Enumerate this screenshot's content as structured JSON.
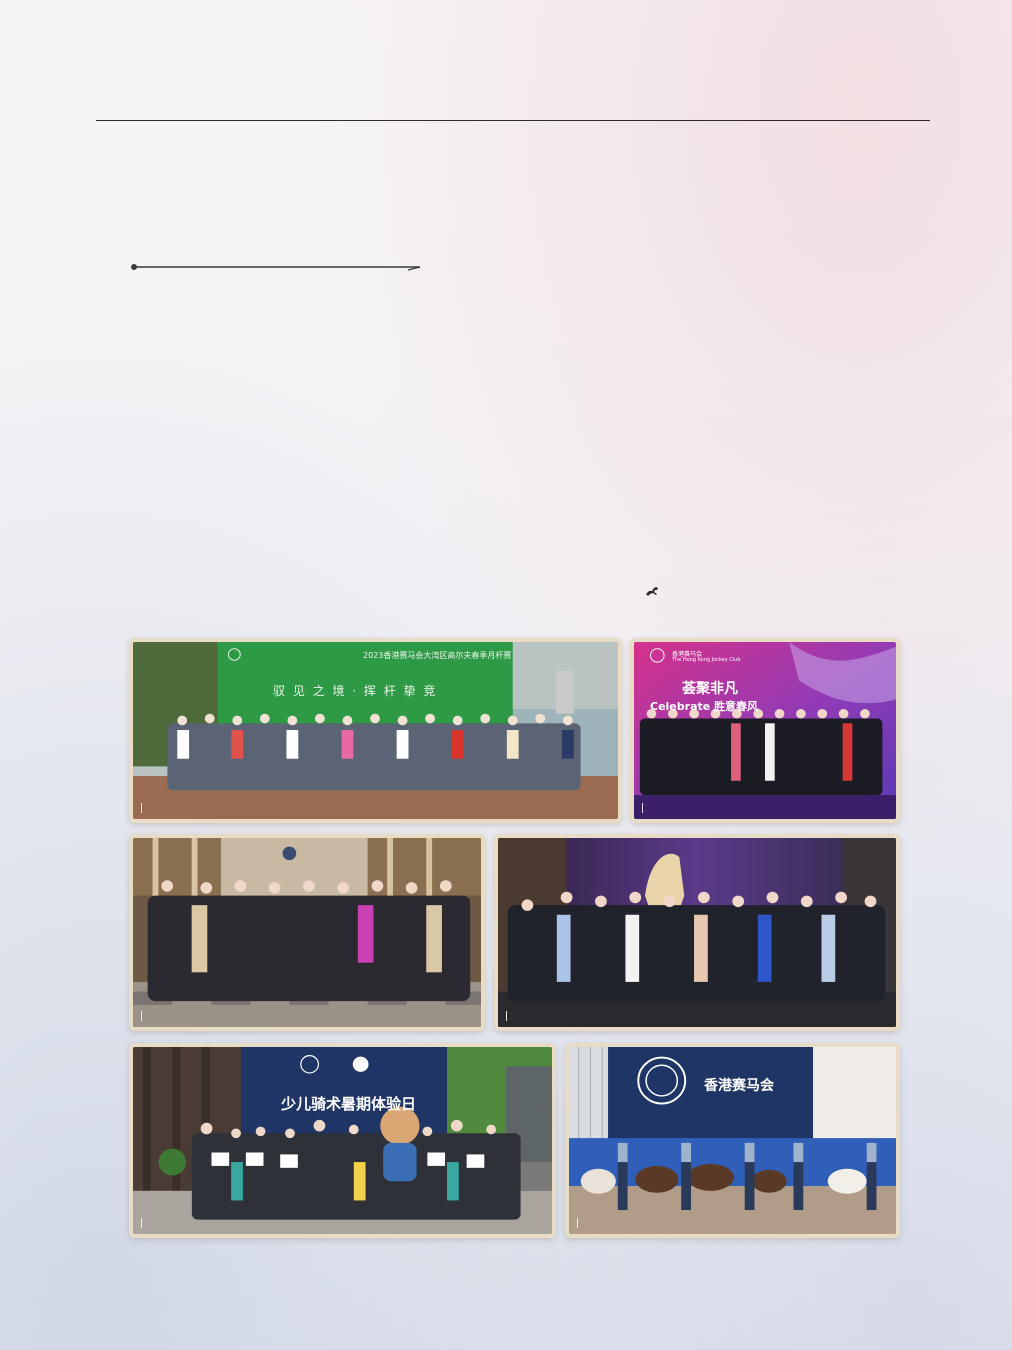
{
  "photos": {
    "golf": {
      "title": "2023香港赛马会大湾区高尔夫春季月杆赛",
      "slogan": "驭 见 之 境 · 挥 杆 挚 竞"
    },
    "gala": {
      "heading": "荟聚非凡",
      "subheading": "Celebrate 胜意春风",
      "org_cn": "香港赛马会",
      "org_en": "The Hong Kong Jockey Club"
    },
    "lobby": {},
    "horse_stage": {},
    "kids_riding": {
      "banner_title": "少儿骑术暑期体验日"
    },
    "arena": {
      "banner_title": "香港赛马会"
    }
  },
  "colors": {
    "frame": "#e8dcc6",
    "golf_green": "#2f9a46",
    "gala_magenta": "#c2338f",
    "navy_banner": "#1f3566"
  }
}
